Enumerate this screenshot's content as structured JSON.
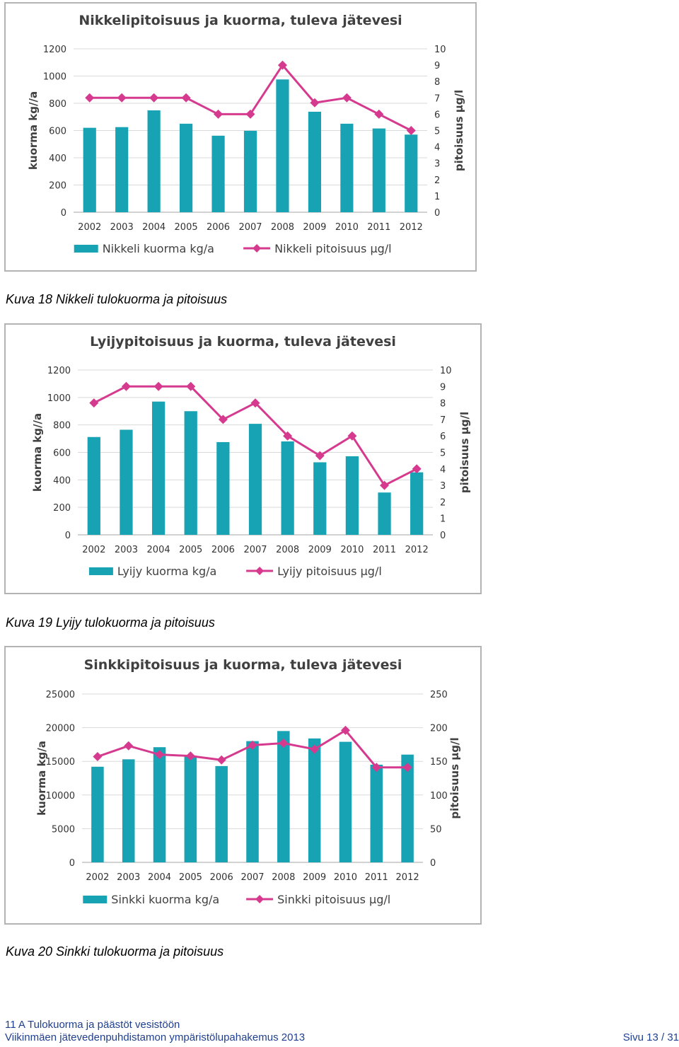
{
  "charts": [
    {
      "caption": "Kuva 18 Nikkeli tulokuorma ja pitoisuus",
      "chart_data": {
        "type": "bar+line",
        "title": "Nikkelipitoisuus ja kuorma, tuleva jätevesi",
        "categories": [
          "2002",
          "2003",
          "2004",
          "2005",
          "2006",
          "2007",
          "2008",
          "2009",
          "2010",
          "2011",
          "2012"
        ],
        "ylabel": "kuorma kg//a",
        "ylabel2": "pitoisuus µg/l",
        "ylim": [
          0,
          1200
        ],
        "yticks": [
          0,
          200,
          400,
          600,
          800,
          1000,
          1200
        ],
        "ylim2": [
          0,
          10
        ],
        "yticks2": [
          0,
          1,
          2,
          3,
          4,
          5,
          6,
          7,
          8,
          9,
          10
        ],
        "series": [
          {
            "name": "Nikkeli kuorma kg/a",
            "kind": "bar",
            "axis": "left",
            "values": [
              620,
              625,
              748,
              650,
              562,
              598,
              975,
              738,
              650,
              615,
              570
            ]
          },
          {
            "name": "Nikkeli pitoisuus µg/l",
            "kind": "line",
            "axis": "right",
            "values": [
              7,
              7,
              7,
              7,
              6,
              6,
              9,
              6.7,
              7,
              6,
              5
            ]
          }
        ],
        "legend": "bottom"
      }
    },
    {
      "caption": "Kuva 19 Lyijy tulokuorma ja pitoisuus",
      "chart_data": {
        "type": "bar+line",
        "title": "Lyijypitoisuus ja kuorma, tuleva jätevesi",
        "categories": [
          "2002",
          "2003",
          "2004",
          "2005",
          "2006",
          "2007",
          "2008",
          "2009",
          "2010",
          "2011",
          "2012"
        ],
        "ylabel": "kuorma kg//a",
        "ylabel2": "pitoisuus µg/l",
        "ylim": [
          0,
          1200
        ],
        "yticks": [
          0,
          200,
          400,
          600,
          800,
          1000,
          1200
        ],
        "ylim2": [
          0,
          10
        ],
        "yticks2": [
          0,
          1,
          2,
          3,
          4,
          5,
          6,
          7,
          8,
          9,
          10
        ],
        "series": [
          {
            "name": "Lyijy kuorma kg/a",
            "kind": "bar",
            "axis": "left",
            "values": [
              712,
              765,
              970,
              900,
              675,
              808,
              680,
              528,
              572,
              308,
              455
            ]
          },
          {
            "name": "Lyijy pitoisuus µg/l",
            "kind": "line",
            "axis": "right",
            "values": [
              8,
              9,
              9,
              9,
              7,
              8,
              6,
              4.8,
              6,
              3,
              4
            ]
          }
        ],
        "legend": "bottom"
      }
    },
    {
      "caption": "Kuva 20 Sinkki tulokuorma ja pitoisuus",
      "chart_data": {
        "type": "bar+line",
        "title": "Sinkkipitoisuus ja kuorma, tuleva jätevesi",
        "categories": [
          "2002",
          "2003",
          "2004",
          "2005",
          "2006",
          "2007",
          "2008",
          "2009",
          "2010",
          "2011",
          "2012"
        ],
        "ylabel": "kuorma kg/a",
        "ylabel2": "pitoisuus µg/l",
        "ylim": [
          0,
          25000
        ],
        "yticks": [
          0,
          5000,
          10000,
          15000,
          20000,
          25000
        ],
        "ylim2": [
          0,
          250
        ],
        "yticks2": [
          0,
          50,
          100,
          150,
          200,
          250
        ],
        "series": [
          {
            "name": "Sinkki kuorma kg/a",
            "kind": "bar",
            "axis": "left",
            "values": [
              14200,
              15300,
              17100,
              15800,
              14300,
              18000,
              19500,
              18400,
              17900,
              14500,
              16000
            ]
          },
          {
            "name": "Sinkki pitoisuus µg/l",
            "kind": "line",
            "axis": "right",
            "values": [
              157,
              173,
              160,
              158,
              152,
              174,
              177,
              168,
              196,
              141,
              141
            ]
          }
        ],
        "legend": "bottom"
      }
    }
  ],
  "colors": {
    "bar": "#17a3b3",
    "line": "#d63a8f",
    "grid": "#d9d9d9",
    "axis": "#a6a6a6"
  },
  "footer": {
    "section": "11 A Tulokuorma ja päästöt vesistöön",
    "document": "Viikinmäen jätevedenpuhdistamon ympäristölupahakemus 2013",
    "page": "Sivu 13 / 31"
  }
}
